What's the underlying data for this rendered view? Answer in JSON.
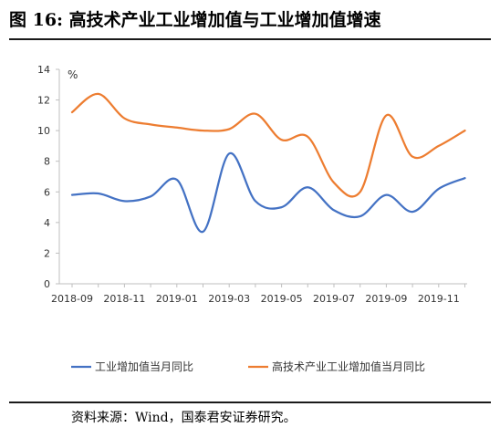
{
  "figure": {
    "title": "图 16:  高技术产业工业增加值与工业增加值增速",
    "source": "资料来源：Wind，国泰君安证券研究。"
  },
  "chart_data": {
    "type": "line",
    "unit_label": "%",
    "ylim": [
      0,
      14
    ],
    "y_ticks": [
      0,
      2,
      4,
      6,
      8,
      10,
      12,
      14
    ],
    "x_tick_labels": [
      "2018-09",
      "2018-11",
      "2019-01",
      "2019-03",
      "2019-05",
      "2019-07",
      "2019-09",
      "2019-11"
    ],
    "x_months": [
      "2018-09",
      "2018-10",
      "2018-11",
      "2018-12",
      "2019-01",
      "2019-02",
      "2019-03",
      "2019-04",
      "2019-05",
      "2019-06",
      "2019-07",
      "2019-08",
      "2019-09",
      "2019-10",
      "2019-11",
      "2019-12"
    ],
    "grid": false,
    "legend_position": "bottom",
    "series": [
      {
        "name": "工业增加值当月同比",
        "color": "#4472C4",
        "values": [
          5.8,
          5.9,
          5.4,
          5.7,
          6.8,
          3.4,
          8.5,
          5.4,
          5.0,
          6.3,
          4.8,
          4.4,
          5.8,
          4.7,
          6.2,
          6.9
        ]
      },
      {
        "name": "高技术产业工业增加值当月同比",
        "color": "#ED7D31",
        "values": [
          11.2,
          12.4,
          10.8,
          10.4,
          10.2,
          10.0,
          10.1,
          11.1,
          9.4,
          9.6,
          6.6,
          6.0,
          11.0,
          8.3,
          9.0,
          10.0
        ]
      }
    ]
  }
}
